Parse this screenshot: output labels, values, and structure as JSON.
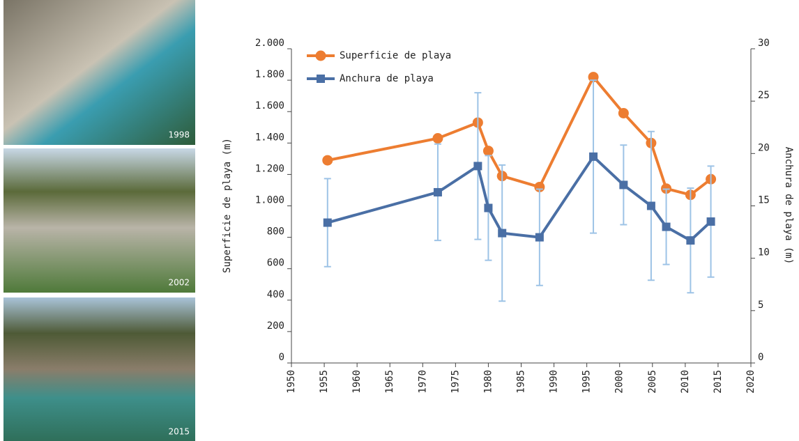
{
  "photos": [
    "1998",
    "2002",
    "2015"
  ],
  "chart_data": {
    "type": "line",
    "xlim": [
      1950,
      2020
    ],
    "xticks": [
      1950,
      1955,
      1960,
      1965,
      1970,
      1975,
      1980,
      1985,
      1990,
      1995,
      2000,
      2005,
      2010,
      2015,
      2020
    ],
    "ylim": [
      0,
      2000
    ],
    "yticks": [
      0,
      200,
      400,
      600,
      800,
      {
        "value": 1000,
        "label": "1.000"
      },
      {
        "value": 1200,
        "label": "1.200"
      },
      {
        "value": 1400,
        "label": "1.400"
      },
      {
        "value": 1600,
        "label": "1.600"
      },
      {
        "value": 1800,
        "label": "1.800"
      },
      {
        "value": 2000,
        "label": "2.000"
      }
    ],
    "y2lim": [
      0,
      30
    ],
    "y2ticks": [
      0,
      5,
      10,
      15,
      20,
      25,
      30
    ],
    "ylabel": "Superficie de playa (m)",
    "y2label": "Anchura de playa (m)",
    "legend": "top-left",
    "series": [
      {
        "name": "Superficie de playa",
        "color": "#ed7d31",
        "marker": "circle",
        "x": [
          1955.5,
          1972.3,
          1978.4,
          1980.0,
          1982.1,
          1987.8,
          1996.0,
          2000.6,
          2004.8,
          2007.1,
          2010.8,
          2013.9
        ],
        "values": [
          1290,
          1430,
          1530,
          1350,
          1190,
          1120,
          1820,
          1590,
          1400,
          1110,
          1070,
          1170
        ]
      },
      {
        "name": "Anchura de playa",
        "color": "#4a6fa5",
        "marker": "square",
        "axis": "y2",
        "error_color": "#9dc3e6",
        "x": [
          1955.5,
          1972.3,
          1978.4,
          1980.0,
          1982.1,
          1987.8,
          1996.0,
          2000.6,
          2004.8,
          2007.1,
          2010.8,
          2013.9
        ],
        "values": [
          13.4,
          16.3,
          18.8,
          14.8,
          12.4,
          12.0,
          19.7,
          17.0,
          15.0,
          13.0,
          11.7,
          13.5
        ],
        "errors": [
          4.2,
          4.6,
          7.0,
          5.0,
          6.5,
          4.6,
          7.3,
          3.8,
          7.1,
          3.6,
          5.0,
          5.3
        ]
      }
    ]
  }
}
